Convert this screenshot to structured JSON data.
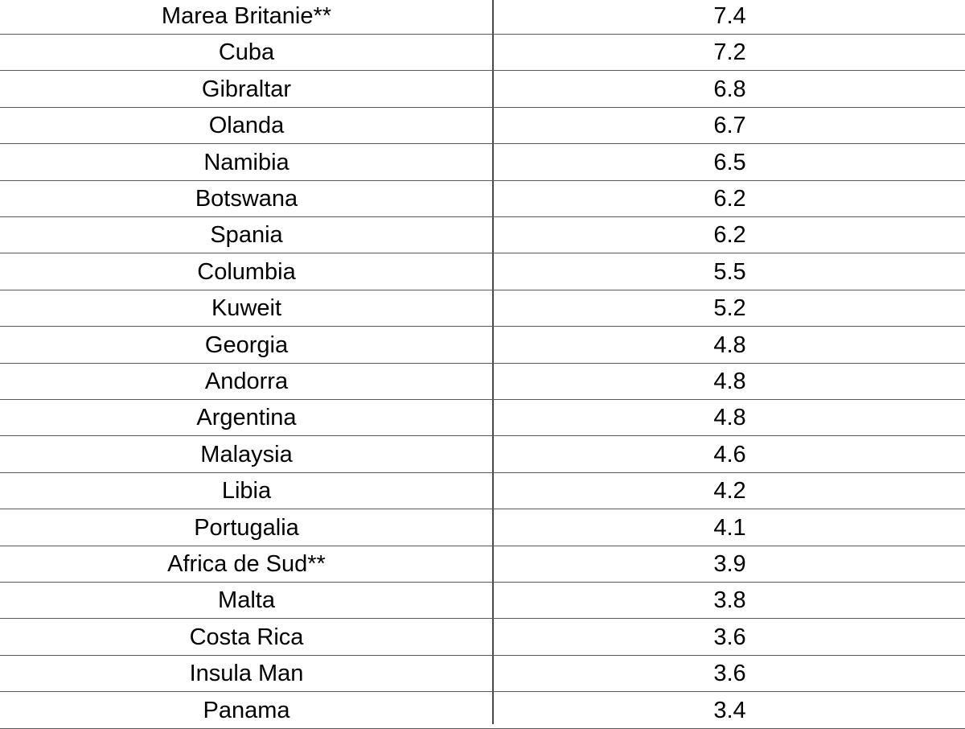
{
  "table": {
    "rows": [
      {
        "country": "Marea Britanie**",
        "value": "7.4"
      },
      {
        "country": "Cuba",
        "value": "7.2"
      },
      {
        "country": "Gibraltar",
        "value": "6.8"
      },
      {
        "country": "Olanda",
        "value": "6.7"
      },
      {
        "country": "Namibia",
        "value": "6.5"
      },
      {
        "country": "Botswana",
        "value": "6.2"
      },
      {
        "country": "Spania",
        "value": "6.2"
      },
      {
        "country": "Columbia",
        "value": "5.5"
      },
      {
        "country": "Kuweit",
        "value": "5.2"
      },
      {
        "country": "Georgia",
        "value": "4.8"
      },
      {
        "country": "Andorra",
        "value": "4.8"
      },
      {
        "country": "Argentina",
        "value": "4.8"
      },
      {
        "country": "Malaysia",
        "value": "4.6"
      },
      {
        "country": "Libia",
        "value": "4.2"
      },
      {
        "country": "Portugalia",
        "value": "4.1"
      },
      {
        "country": "Africa de Sud**",
        "value": "3.9"
      },
      {
        "country": "Malta",
        "value": "3.8"
      },
      {
        "country": "Costa Rica",
        "value": "3.6"
      },
      {
        "country": "Insula Man",
        "value": "3.6"
      },
      {
        "country": "Panama",
        "value": "3.4"
      }
    ]
  }
}
